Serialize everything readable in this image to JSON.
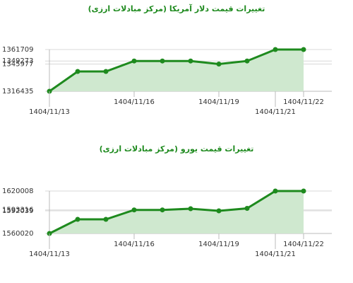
{
  "chart_data": [
    {
      "type": "line",
      "title": "تغییرات قیمت دلار آمریکا (مرکز مبادلات ارزی)",
      "categories": [
        "1404/11/13",
        null,
        null,
        "1404/11/16",
        null,
        null,
        "1404/11/19",
        null,
        "1404/11/21",
        "1404/11/22"
      ],
      "values": [
        1316435,
        1337900,
        1337900,
        1349273,
        1349273,
        1349273,
        1345977,
        1349273,
        1361709,
        1361709
      ],
      "color": "#1e8a1e",
      "fill": "#cfe8cf",
      "ylim": [
        1316435,
        1361709
      ],
      "yticks": [
        1316435,
        1345977,
        1349273,
        1361709
      ]
    },
    {
      "type": "line",
      "title": "تغییرات قیمت یورو (مرکز مبادلات ارزی)",
      "categories": [
        "1404/11/13",
        null,
        null,
        "1404/11/16",
        null,
        null,
        "1404/11/19",
        null,
        "1404/11/21",
        "1404/11/22"
      ],
      "values": [
        1560020,
        1580000,
        1580000,
        1593316,
        1593316,
        1595000,
        1592039,
        1595500,
        1620008,
        1620008
      ],
      "color": "#1e8a1e",
      "fill": "#cfe8cf",
      "ylim": [
        1560020,
        1620008
      ],
      "yticks": [
        1560020,
        1592039,
        1593316,
        1620008
      ]
    }
  ]
}
